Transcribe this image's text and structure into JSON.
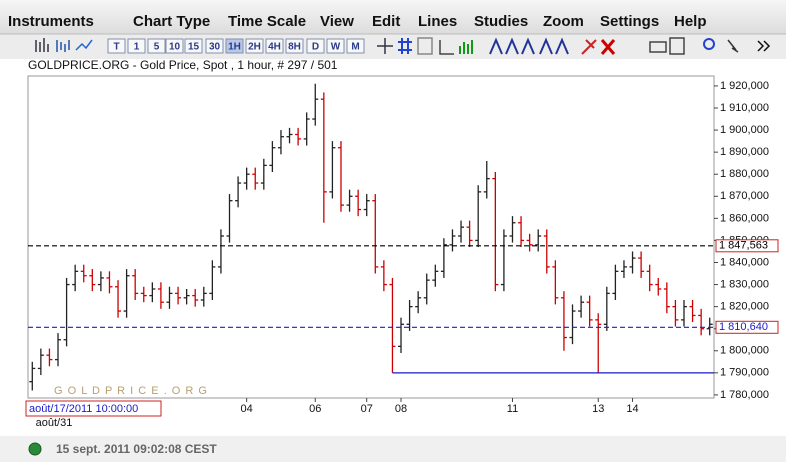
{
  "menu": [
    "Instruments",
    "Chart Type",
    "Time Scale",
    "View",
    "Edit",
    "Lines",
    "Studies",
    "Zoom",
    "Settings",
    "Help"
  ],
  "toolbar": {
    "timeframes": [
      "T",
      "1",
      "5",
      "10",
      "15",
      "30",
      "1H",
      "2H",
      "4H",
      "8H",
      "D",
      "W",
      "M"
    ]
  },
  "chart_data": {
    "type": "ohlc",
    "title": "GOLDPRICE.ORG - Gold Price, Spot , 1 hour, # 297 / 501",
    "watermark": "G O L D P R I C E . O R G",
    "cursor_label": "août/17/2011 10:00:00",
    "start_label": "août/31",
    "up_color": "#222222",
    "down_color": "#cc0000",
    "categories": [
      null,
      null,
      null,
      null,
      null,
      null,
      null,
      null,
      null,
      null,
      null,
      null,
      null,
      null,
      null,
      null,
      null,
      null,
      null,
      null,
      null,
      null,
      null,
      null,
      null,
      "04",
      null,
      null,
      null,
      null,
      null,
      null,
      null,
      "06",
      null,
      null,
      null,
      null,
      null,
      "07",
      null,
      null,
      null,
      "08",
      null,
      null,
      null,
      null,
      null,
      null,
      null,
      null,
      null,
      null,
      null,
      null,
      "11",
      null,
      null,
      null,
      null,
      null,
      null,
      null,
      null,
      null,
      "13",
      null,
      null,
      null,
      "14",
      null,
      null,
      null,
      null,
      null,
      null,
      null,
      null,
      null
    ],
    "open": [
      1786,
      1792,
      1798,
      1796,
      1805,
      1830,
      1836,
      1834,
      1830,
      1833,
      1829,
      1818,
      1834,
      1826,
      1825,
      1828,
      1822,
      1826,
      1824,
      1825,
      1823,
      1826,
      1838,
      1852,
      1868,
      1876,
      1880,
      1876,
      1884,
      1892,
      1897,
      1898,
      1896,
      1905,
      1914,
      1872,
      1892,
      1866,
      1870,
      1864,
      1868,
      1838,
      1830,
      1802,
      1812,
      1820,
      1824,
      1832,
      1836,
      1848,
      1852,
      1856,
      1850,
      1872,
      1878,
      1830,
      1852,
      1858,
      1850,
      1848,
      1852,
      1838,
      1824,
      1806,
      1818,
      1822,
      1814,
      1812,
      1826,
      1836,
      1838,
      1842,
      1836,
      1830,
      1828,
      1820,
      1814,
      1820,
      1816,
      1810
    ],
    "high": [
      1795,
      1801,
      1801,
      1808,
      1833,
      1839,
      1839,
      1837,
      1836,
      1836,
      1832,
      1837,
      1837,
      1829,
      1831,
      1831,
      1829,
      1829,
      1828,
      1828,
      1829,
      1841,
      1855,
      1871,
      1879,
      1883,
      1883,
      1887,
      1895,
      1900,
      1901,
      1901,
      1908,
      1921,
      1917,
      1895,
      1895,
      1873,
      1873,
      1871,
      1871,
      1841,
      1833,
      1815,
      1823,
      1827,
      1835,
      1839,
      1851,
      1855,
      1859,
      1859,
      1875,
      1886,
      1881,
      1855,
      1861,
      1861,
      1853,
      1855,
      1855,
      1841,
      1827,
      1821,
      1825,
      1825,
      1817,
      1829,
      1839,
      1841,
      1845,
      1845,
      1839,
      1833,
      1831,
      1823,
      1823,
      1823,
      1819,
      1815
    ],
    "low": [
      1782,
      1789,
      1793,
      1793,
      1802,
      1827,
      1831,
      1827,
      1827,
      1826,
      1815,
      1815,
      1823,
      1822,
      1822,
      1819,
      1819,
      1821,
      1821,
      1820,
      1820,
      1823,
      1835,
      1849,
      1865,
      1873,
      1873,
      1873,
      1881,
      1889,
      1894,
      1893,
      1893,
      1902,
      1858,
      1869,
      1863,
      1863,
      1861,
      1861,
      1835,
      1827,
      1790,
      1799,
      1809,
      1817,
      1821,
      1829,
      1833,
      1845,
      1849,
      1847,
      1847,
      1869,
      1827,
      1827,
      1849,
      1847,
      1845,
      1845,
      1835,
      1821,
      1800,
      1803,
      1815,
      1811,
      1790,
      1809,
      1823,
      1833,
      1835,
      1833,
      1827,
      1825,
      1817,
      1811,
      1811,
      1813,
      1807,
      1807
    ],
    "close": [
      1792,
      1798,
      1796,
      1805,
      1830,
      1836,
      1834,
      1830,
      1833,
      1829,
      1818,
      1834,
      1826,
      1825,
      1828,
      1822,
      1826,
      1824,
      1825,
      1823,
      1826,
      1838,
      1852,
      1868,
      1876,
      1880,
      1876,
      1884,
      1892,
      1897,
      1898,
      1896,
      1905,
      1914,
      1872,
      1892,
      1866,
      1870,
      1864,
      1868,
      1838,
      1830,
      1802,
      1812,
      1820,
      1824,
      1832,
      1836,
      1848,
      1852,
      1856,
      1850,
      1872,
      1878,
      1830,
      1852,
      1858,
      1850,
      1848,
      1852,
      1838,
      1824,
      1806,
      1818,
      1822,
      1814,
      1812,
      1826,
      1836,
      1838,
      1842,
      1836,
      1830,
      1828,
      1820,
      1814,
      1820,
      1816,
      1810,
      1812
    ],
    "lines": [
      {
        "value": 1847.563,
        "label": "1 847,563",
        "color": "#000000",
        "style": "dashed"
      },
      {
        "value": 1810.64,
        "label": "1 810,640",
        "color": "#1a1acc",
        "style": "dashed"
      },
      {
        "value": 1790,
        "color": "#1a1acc",
        "style": "solid",
        "start": 42
      }
    ],
    "ylim": [
      1778.6,
      1924.5
    ],
    "yticks": [
      {
        "value": 1780,
        "label": "1 780,000"
      },
      {
        "value": 1790,
        "label": "1 790,000"
      },
      {
        "value": 1800,
        "label": "1 800,000"
      },
      {
        "value": 1810,
        "label": "1 810,000"
      },
      {
        "value": 1820,
        "label": "1 820,000"
      },
      {
        "value": 1830,
        "label": "1 830,000"
      },
      {
        "value": 1840,
        "label": "1 840,000"
      },
      {
        "value": 1850,
        "label": "1 850,000"
      },
      {
        "value": 1860,
        "label": "1 860,000"
      },
      {
        "value": 1870,
        "label": "1 870,000"
      },
      {
        "value": 1880,
        "label": "1 880,000"
      },
      {
        "value": 1890,
        "label": "1 890,000"
      },
      {
        "value": 1900,
        "label": "1 900,000"
      },
      {
        "value": 1910,
        "label": "1 910,000"
      },
      {
        "value": 1920,
        "label": "1 920,000"
      }
    ]
  },
  "status": "15 sept. 2011 09:02:08 CEST"
}
